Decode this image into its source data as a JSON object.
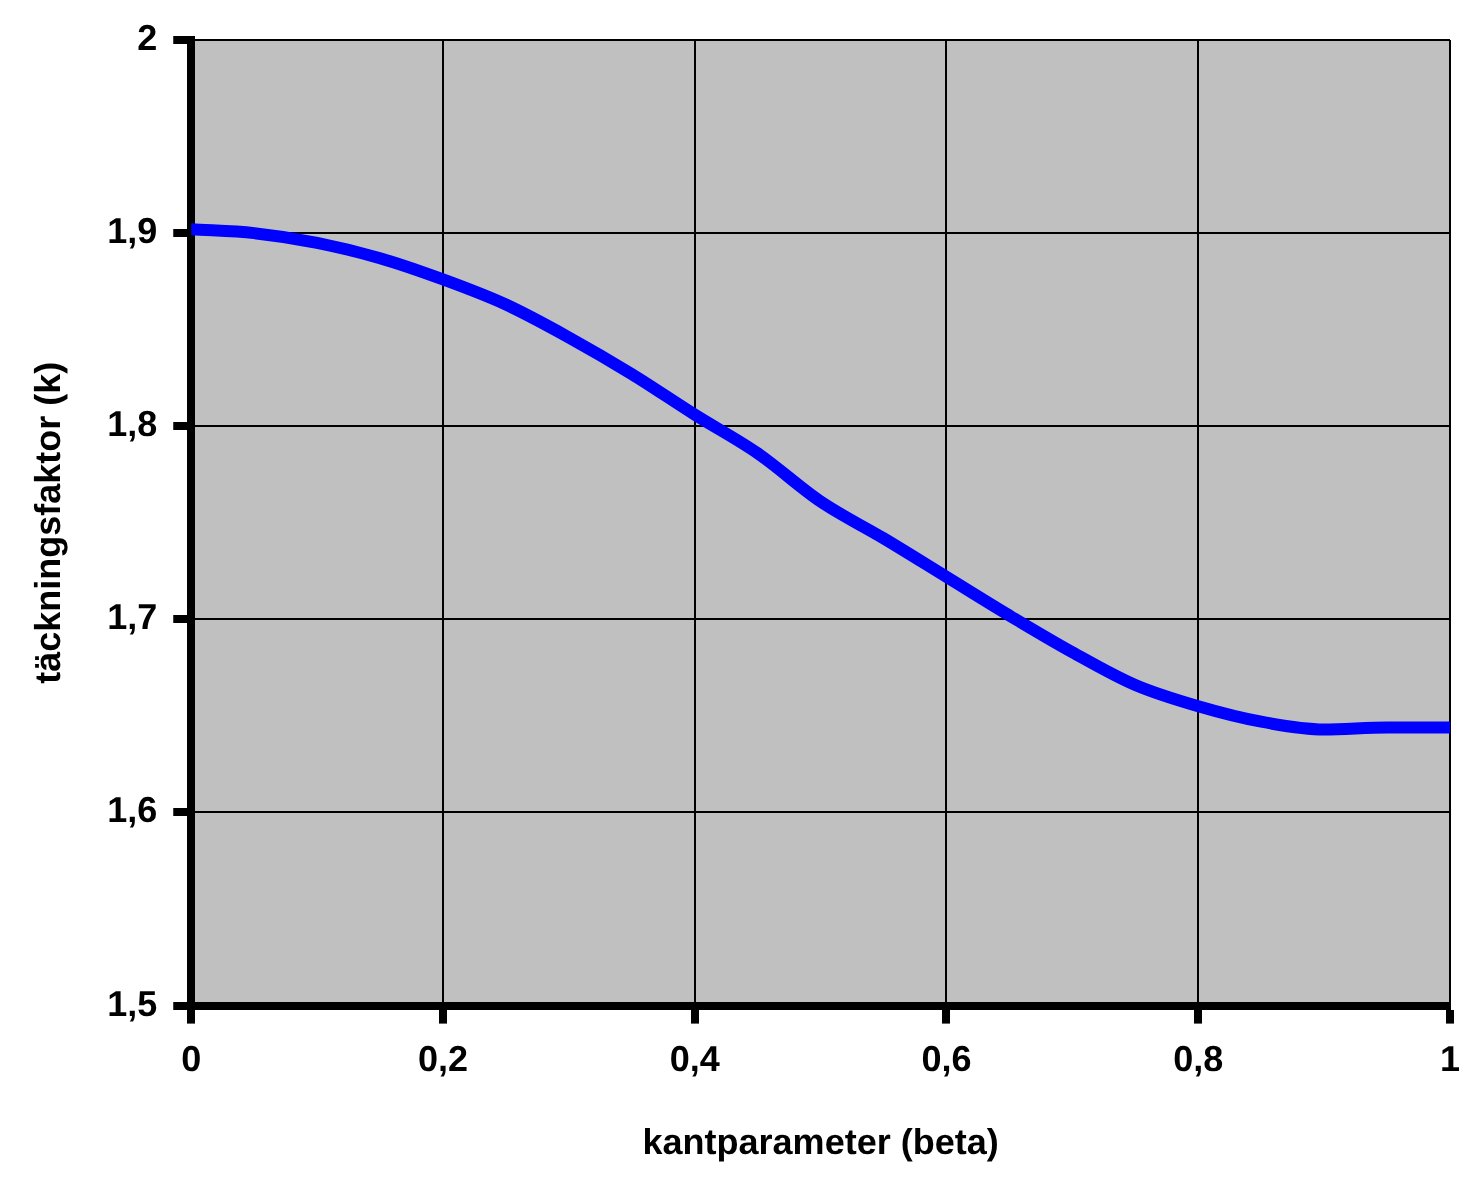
{
  "chart_data": {
    "type": "line",
    "xlabel": "kantparameter (beta)",
    "ylabel": "täckningsfaktor (k)",
    "x": [
      0,
      0.05,
      0.1,
      0.15,
      0.2,
      0.25,
      0.3,
      0.35,
      0.4,
      0.45,
      0.5,
      0.55,
      0.6,
      0.65,
      0.7,
      0.75,
      0.8,
      0.85,
      0.9,
      0.95,
      1
    ],
    "series": [
      {
        "color": "#0000ff",
        "values": [
          1.902,
          1.9,
          1.895,
          1.887,
          1.876,
          1.863,
          1.846,
          1.827,
          1.806,
          1.786,
          1.761,
          1.742,
          1.722,
          1.702,
          1.683,
          1.666,
          1.655,
          1.647,
          1.643,
          1.644,
          1.644
        ]
      }
    ],
    "xlim": [
      0,
      1
    ],
    "xticks": [
      0,
      {
        "value": 0.2,
        "label": "0,2"
      },
      {
        "value": 0.4,
        "label": "0,4"
      },
      {
        "value": 0.6,
        "label": "0,6"
      },
      {
        "value": 0.8,
        "label": "0,8"
      },
      1
    ],
    "ylim": [
      1.5,
      2
    ],
    "yticks": [
      {
        "value": 1.5,
        "label": "1,5"
      },
      {
        "value": 1.6,
        "label": "1,6"
      },
      {
        "value": 1.7,
        "label": "1,7"
      },
      {
        "value": 1.8,
        "label": "1,8"
      },
      {
        "value": 1.9,
        "label": "1,9"
      },
      2
    ],
    "grid": true,
    "legend": false,
    "marker": "none",
    "line_style": "solid"
  }
}
